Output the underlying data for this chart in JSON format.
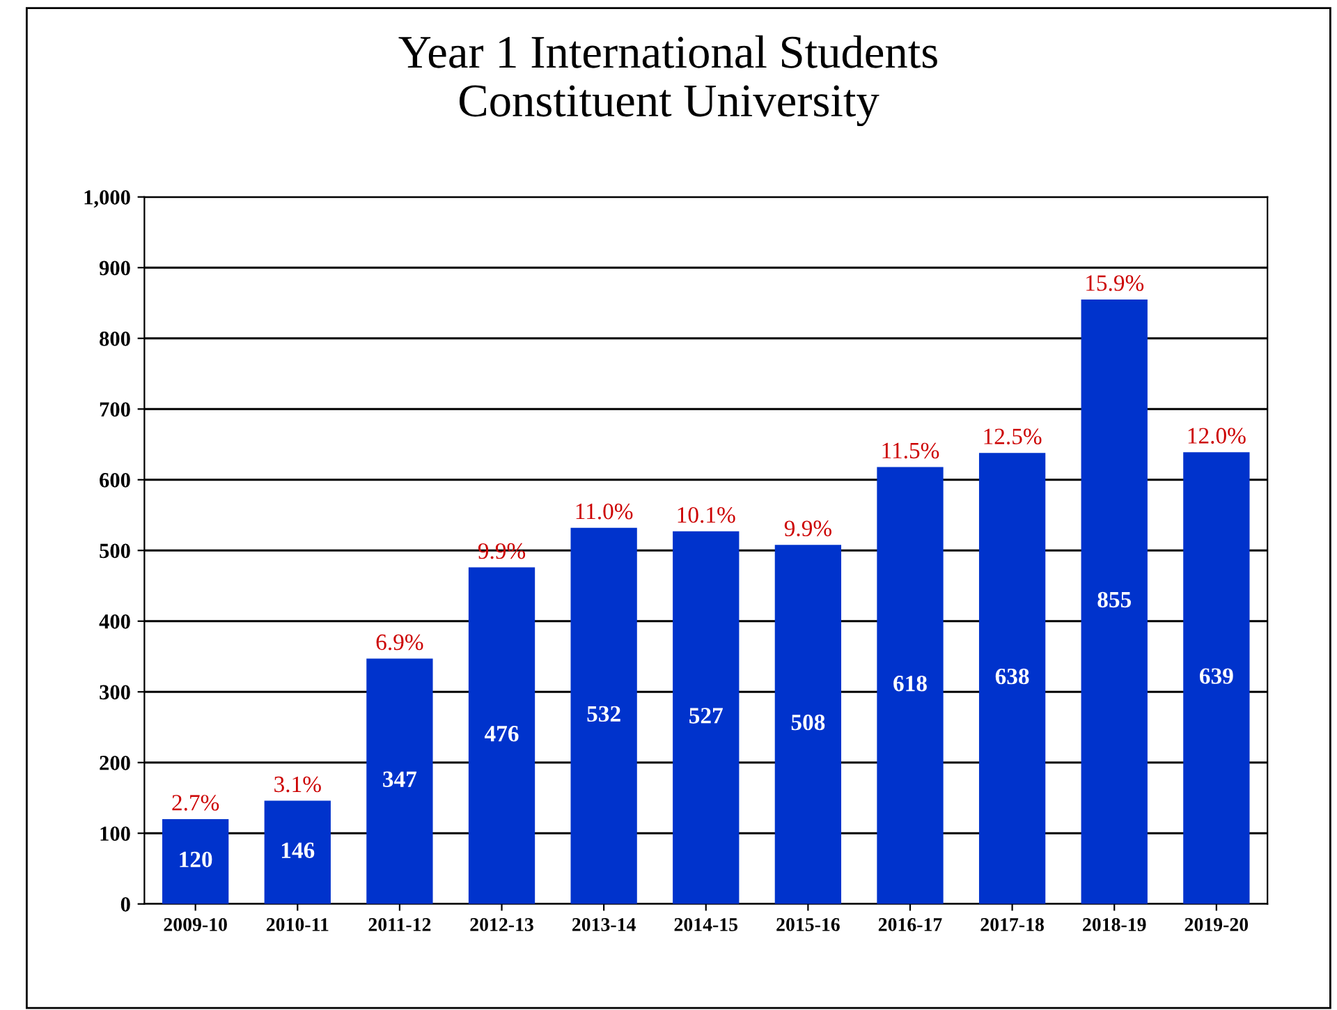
{
  "chart_data": {
    "type": "bar",
    "title": "Year 1 International Students\nConstituent University",
    "categories": [
      "2009-10",
      "2010-11",
      "2011-12",
      "2012-13",
      "2013-14",
      "2014-15",
      "2015-16",
      "2016-17",
      "2017-18",
      "2018-19",
      "2019-20"
    ],
    "values": [
      120,
      146,
      347,
      476,
      532,
      527,
      508,
      618,
      638,
      855,
      639
    ],
    "color": "#0033cc",
    "data_labels": true,
    "annotations": [
      {
        "text": "2.7%",
        "x": "2009-10",
        "y": 120
      },
      {
        "text": "3.1%",
        "x": "2010-11",
        "y": 146
      },
      {
        "text": "6.9%",
        "x": "2011-12",
        "y": 347
      },
      {
        "text": "9.9%",
        "x": "2012-13",
        "y": 476
      },
      {
        "text": "11.0%",
        "x": "2013-14",
        "y": 532
      },
      {
        "text": "10.1%",
        "x": "2014-15",
        "y": 527
      },
      {
        "text": "9.9%",
        "x": "2015-16",
        "y": 508
      },
      {
        "text": "11.5%",
        "x": "2016-17",
        "y": 618
      },
      {
        "text": "12.5%",
        "x": "2017-18",
        "y": 638
      },
      {
        "text": "15.9%",
        "x": "2018-19",
        "y": 855
      },
      {
        "text": "12.0%",
        "x": "2019-20",
        "y": 639
      }
    ],
    "ylim": [
      0,
      1000
    ],
    "yticks": [
      0,
      100,
      200,
      300,
      400,
      500,
      600,
      700,
      800,
      900,
      {
        "value": 1000,
        "label": "1,000"
      }
    ],
    "grid": "y"
  }
}
